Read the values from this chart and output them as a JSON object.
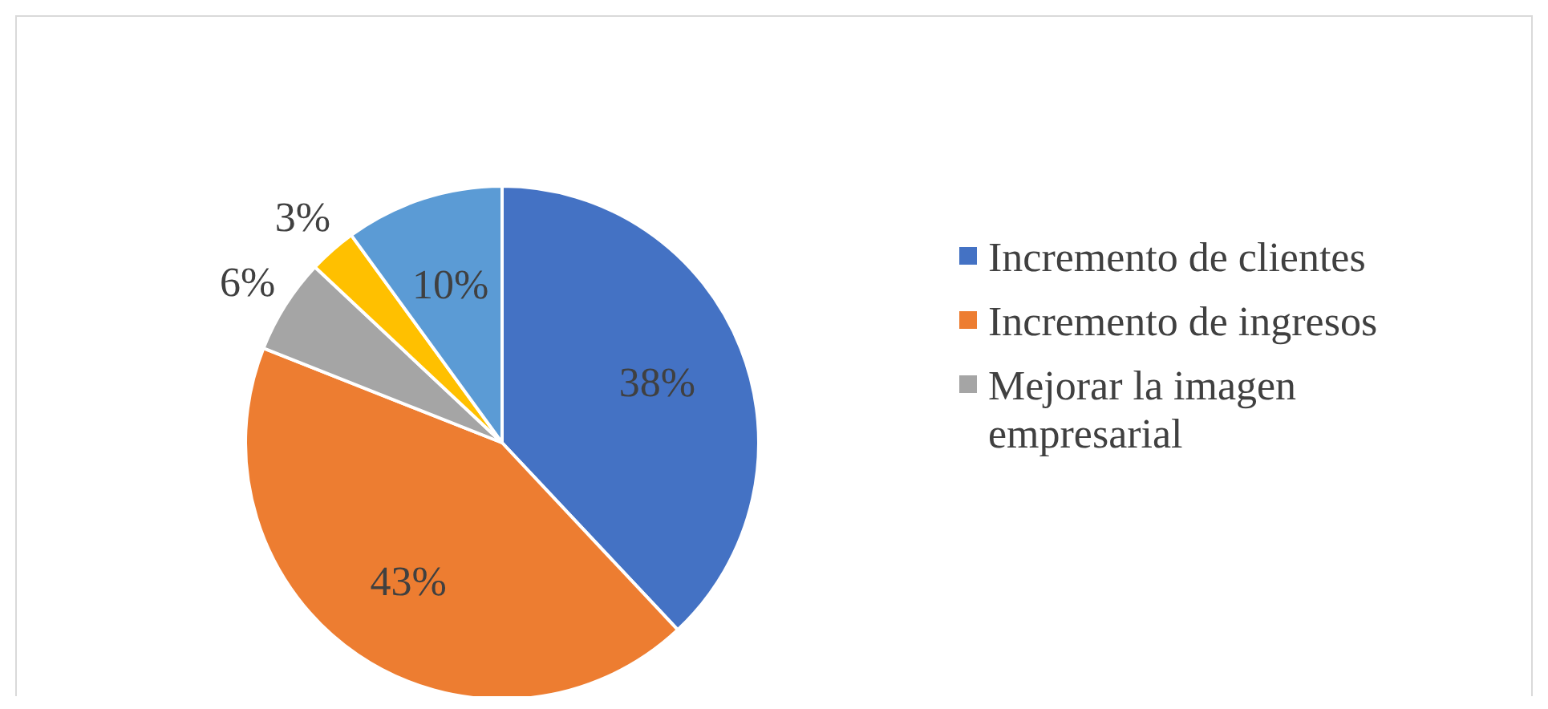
{
  "chart_data": {
    "type": "pie",
    "categories": [
      "Incremento de clientes",
      "Incremento de ingresos",
      "Mejorar la imagen empresarial",
      null,
      null
    ],
    "values": [
      38,
      43,
      6,
      3,
      10
    ],
    "colors": [
      "#4472c4",
      "#ed7d31",
      "#a5a5a5",
      "#ffc000",
      "#5b9bd5"
    ],
    "value_labels": [
      "38%",
      "43%",
      "6%",
      "3%",
      "10%"
    ],
    "legend": "right"
  }
}
